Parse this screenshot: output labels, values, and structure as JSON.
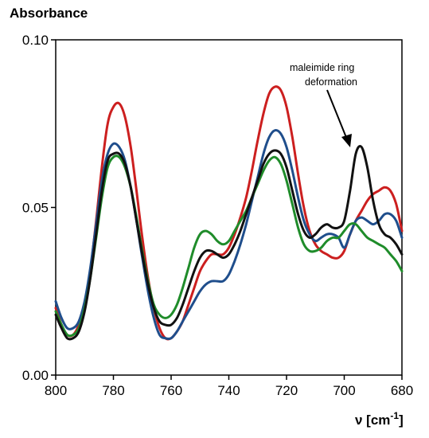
{
  "chart_data": {
    "type": "line",
    "title": "",
    "ylabel": "Absorbance",
    "xlabel": "ν [cm",
    "xlabel_sup": "-1",
    "xlabel_close": "]",
    "xlim": [
      800,
      680
    ],
    "ylim": [
      0.0,
      0.1
    ],
    "x_ticks": [
      800,
      780,
      760,
      740,
      720,
      700,
      680
    ],
    "x_tick_labels": [
      "800",
      "780",
      "760",
      "740",
      "720",
      "700",
      "680"
    ],
    "y_ticks": [
      0.0,
      0.05,
      0.1
    ],
    "y_tick_labels": [
      "0.00",
      "0.05",
      "0.10"
    ],
    "grid": false,
    "legend": "none",
    "annotation": {
      "lines": [
        "maleimide ring",
        "deformation"
      ],
      "points_to": [
        696,
        0.068
      ]
    },
    "series": [
      {
        "color": "#cc1f1f",
        "x": [
          800,
          798,
          796,
          794,
          792,
          790,
          788,
          786,
          784,
          782,
          780,
          778,
          776,
          774,
          772,
          770,
          768,
          766,
          764,
          762,
          760,
          758,
          756,
          754,
          752,
          750,
          748,
          746,
          744,
          742,
          740,
          738,
          736,
          734,
          732,
          730,
          728,
          726,
          724,
          722,
          720,
          718,
          716,
          714,
          712,
          710,
          708,
          706,
          704,
          702,
          700,
          698,
          696,
          694,
          692,
          690,
          688,
          686,
          684,
          682,
          680
        ],
        "y": [
          0.02,
          0.015,
          0.012,
          0.012,
          0.015,
          0.021,
          0.031,
          0.046,
          0.062,
          0.075,
          0.08,
          0.081,
          0.077,
          0.068,
          0.055,
          0.041,
          0.029,
          0.02,
          0.014,
          0.011,
          0.011,
          0.013,
          0.016,
          0.021,
          0.026,
          0.031,
          0.034,
          0.036,
          0.036,
          0.036,
          0.038,
          0.042,
          0.047,
          0.053,
          0.061,
          0.07,
          0.078,
          0.084,
          0.086,
          0.085,
          0.08,
          0.071,
          0.06,
          0.05,
          0.043,
          0.039,
          0.037,
          0.036,
          0.035,
          0.035,
          0.037,
          0.042,
          0.046,
          0.049,
          0.052,
          0.054,
          0.055,
          0.056,
          0.055,
          0.051,
          0.043
        ]
      },
      {
        "color": "#1f4e8c",
        "x": [
          800,
          798,
          796,
          794,
          792,
          790,
          788,
          786,
          784,
          782,
          780,
          778,
          776,
          774,
          772,
          770,
          768,
          766,
          764,
          762,
          760,
          758,
          756,
          754,
          752,
          750,
          748,
          746,
          744,
          742,
          740,
          738,
          736,
          734,
          732,
          730,
          728,
          726,
          724,
          722,
          720,
          718,
          716,
          714,
          712,
          710,
          708,
          706,
          704,
          702,
          700,
          698,
          696,
          694,
          692,
          690,
          688,
          686,
          684,
          682,
          680
        ],
        "y": [
          0.022,
          0.017,
          0.014,
          0.014,
          0.016,
          0.022,
          0.032,
          0.045,
          0.058,
          0.066,
          0.069,
          0.068,
          0.064,
          0.056,
          0.046,
          0.035,
          0.025,
          0.017,
          0.012,
          0.011,
          0.011,
          0.013,
          0.016,
          0.019,
          0.022,
          0.025,
          0.027,
          0.028,
          0.028,
          0.028,
          0.03,
          0.034,
          0.039,
          0.045,
          0.052,
          0.059,
          0.066,
          0.071,
          0.073,
          0.072,
          0.068,
          0.061,
          0.053,
          0.046,
          0.042,
          0.04,
          0.041,
          0.042,
          0.042,
          0.041,
          0.038,
          0.042,
          0.046,
          0.047,
          0.046,
          0.045,
          0.046,
          0.048,
          0.048,
          0.046,
          0.041
        ]
      },
      {
        "color": "#1f8c2a",
        "x": [
          800,
          798,
          796,
          794,
          792,
          790,
          788,
          786,
          784,
          782,
          780,
          778,
          776,
          774,
          772,
          770,
          768,
          766,
          764,
          762,
          760,
          758,
          756,
          754,
          752,
          750,
          748,
          746,
          744,
          742,
          740,
          738,
          736,
          734,
          732,
          730,
          728,
          726,
          724,
          722,
          720,
          718,
          716,
          714,
          712,
          710,
          708,
          706,
          704,
          702,
          700,
          698,
          696,
          694,
          692,
          690,
          688,
          686,
          684,
          682,
          680
        ],
        "y": [
          0.019,
          0.015,
          0.012,
          0.012,
          0.014,
          0.02,
          0.029,
          0.041,
          0.053,
          0.062,
          0.065,
          0.065,
          0.062,
          0.056,
          0.047,
          0.037,
          0.028,
          0.021,
          0.018,
          0.017,
          0.018,
          0.021,
          0.026,
          0.032,
          0.038,
          0.042,
          0.043,
          0.042,
          0.04,
          0.039,
          0.04,
          0.043,
          0.046,
          0.049,
          0.053,
          0.057,
          0.061,
          0.064,
          0.065,
          0.063,
          0.058,
          0.051,
          0.044,
          0.039,
          0.037,
          0.037,
          0.038,
          0.04,
          0.041,
          0.041,
          0.043,
          0.045,
          0.045,
          0.043,
          0.041,
          0.04,
          0.039,
          0.038,
          0.036,
          0.034,
          0.031
        ]
      },
      {
        "color": "#111111",
        "x": [
          800,
          798,
          796,
          794,
          792,
          790,
          788,
          786,
          784,
          782,
          780,
          778,
          776,
          774,
          772,
          770,
          768,
          766,
          764,
          762,
          760,
          758,
          756,
          754,
          752,
          750,
          748,
          746,
          744,
          742,
          740,
          738,
          736,
          734,
          732,
          730,
          728,
          726,
          724,
          722,
          720,
          718,
          716,
          714,
          712,
          710,
          708,
          706,
          704,
          702,
          700,
          698,
          696,
          694,
          692,
          690,
          688,
          686,
          684,
          682,
          680
        ],
        "y": [
          0.018,
          0.014,
          0.011,
          0.011,
          0.013,
          0.019,
          0.029,
          0.042,
          0.055,
          0.064,
          0.066,
          0.066,
          0.063,
          0.056,
          0.046,
          0.036,
          0.027,
          0.02,
          0.016,
          0.015,
          0.015,
          0.017,
          0.021,
          0.026,
          0.031,
          0.035,
          0.037,
          0.037,
          0.036,
          0.035,
          0.036,
          0.039,
          0.043,
          0.048,
          0.053,
          0.058,
          0.063,
          0.066,
          0.067,
          0.066,
          0.062,
          0.055,
          0.048,
          0.043,
          0.041,
          0.042,
          0.044,
          0.045,
          0.044,
          0.044,
          0.046,
          0.055,
          0.066,
          0.068,
          0.062,
          0.052,
          0.045,
          0.042,
          0.041,
          0.039,
          0.036
        ]
      }
    ]
  }
}
